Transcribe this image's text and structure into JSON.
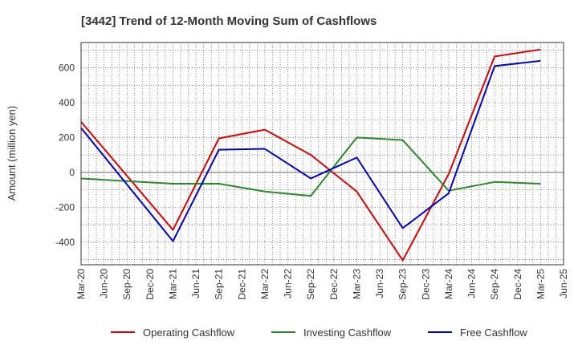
{
  "chart_data": {
    "type": "line",
    "title": "[3442]  Trend of 12-Month Moving Sum of Cashflows",
    "xlabel": "",
    "ylabel": "Amount (million yen)",
    "categories": [
      "Mar-20",
      "Jun-20",
      "Sep-20",
      "Dec-20",
      "Mar-21",
      "Jun-21",
      "Sep-21",
      "Dec-21",
      "Mar-22",
      "Jun-22",
      "Sep-22",
      "Dec-22",
      "Mar-23",
      "Jun-23",
      "Sep-23",
      "Dec-23",
      "Mar-24",
      "Jun-24",
      "Sep-24",
      "Dec-24",
      "Mar-25",
      "Jun-25"
    ],
    "ylim": [
      -530,
      745
    ],
    "yticks": [
      -400,
      -200,
      0,
      200,
      400,
      600
    ],
    "grid": true,
    "legend": "bottom",
    "series": [
      {
        "name": "Operating Cashflow",
        "color": "#e00000",
        "x": [
          "Mar-20",
          "Mar-21",
          "Sep-21",
          "Mar-22",
          "Sep-22",
          "Mar-23",
          "Sep-23",
          "Mar-24",
          "Sep-24",
          "Mar-25"
        ],
        "values": [
          290,
          -330,
          195,
          245,
          100,
          -110,
          -505,
          -10,
          665,
          705
        ]
      },
      {
        "name": "Investing Cashflow",
        "color": "#2a8a2a",
        "x": [
          "Mar-20",
          "Mar-21",
          "Sep-21",
          "Mar-22",
          "Sep-22",
          "Mar-23",
          "Sep-23",
          "Mar-24",
          "Sep-24",
          "Mar-25"
        ],
        "values": [
          -35,
          -65,
          -65,
          -110,
          -135,
          200,
          185,
          -105,
          -55,
          -65
        ]
      },
      {
        "name": "Free Cashflow",
        "color": "#0000cc",
        "x": [
          "Mar-20",
          "Mar-21",
          "Sep-21",
          "Mar-22",
          "Sep-22",
          "Mar-23",
          "Sep-23",
          "Mar-24",
          "Sep-24",
          "Mar-25"
        ],
        "values": [
          255,
          -395,
          130,
          135,
          -35,
          85,
          -320,
          -120,
          610,
          640
        ]
      }
    ]
  }
}
